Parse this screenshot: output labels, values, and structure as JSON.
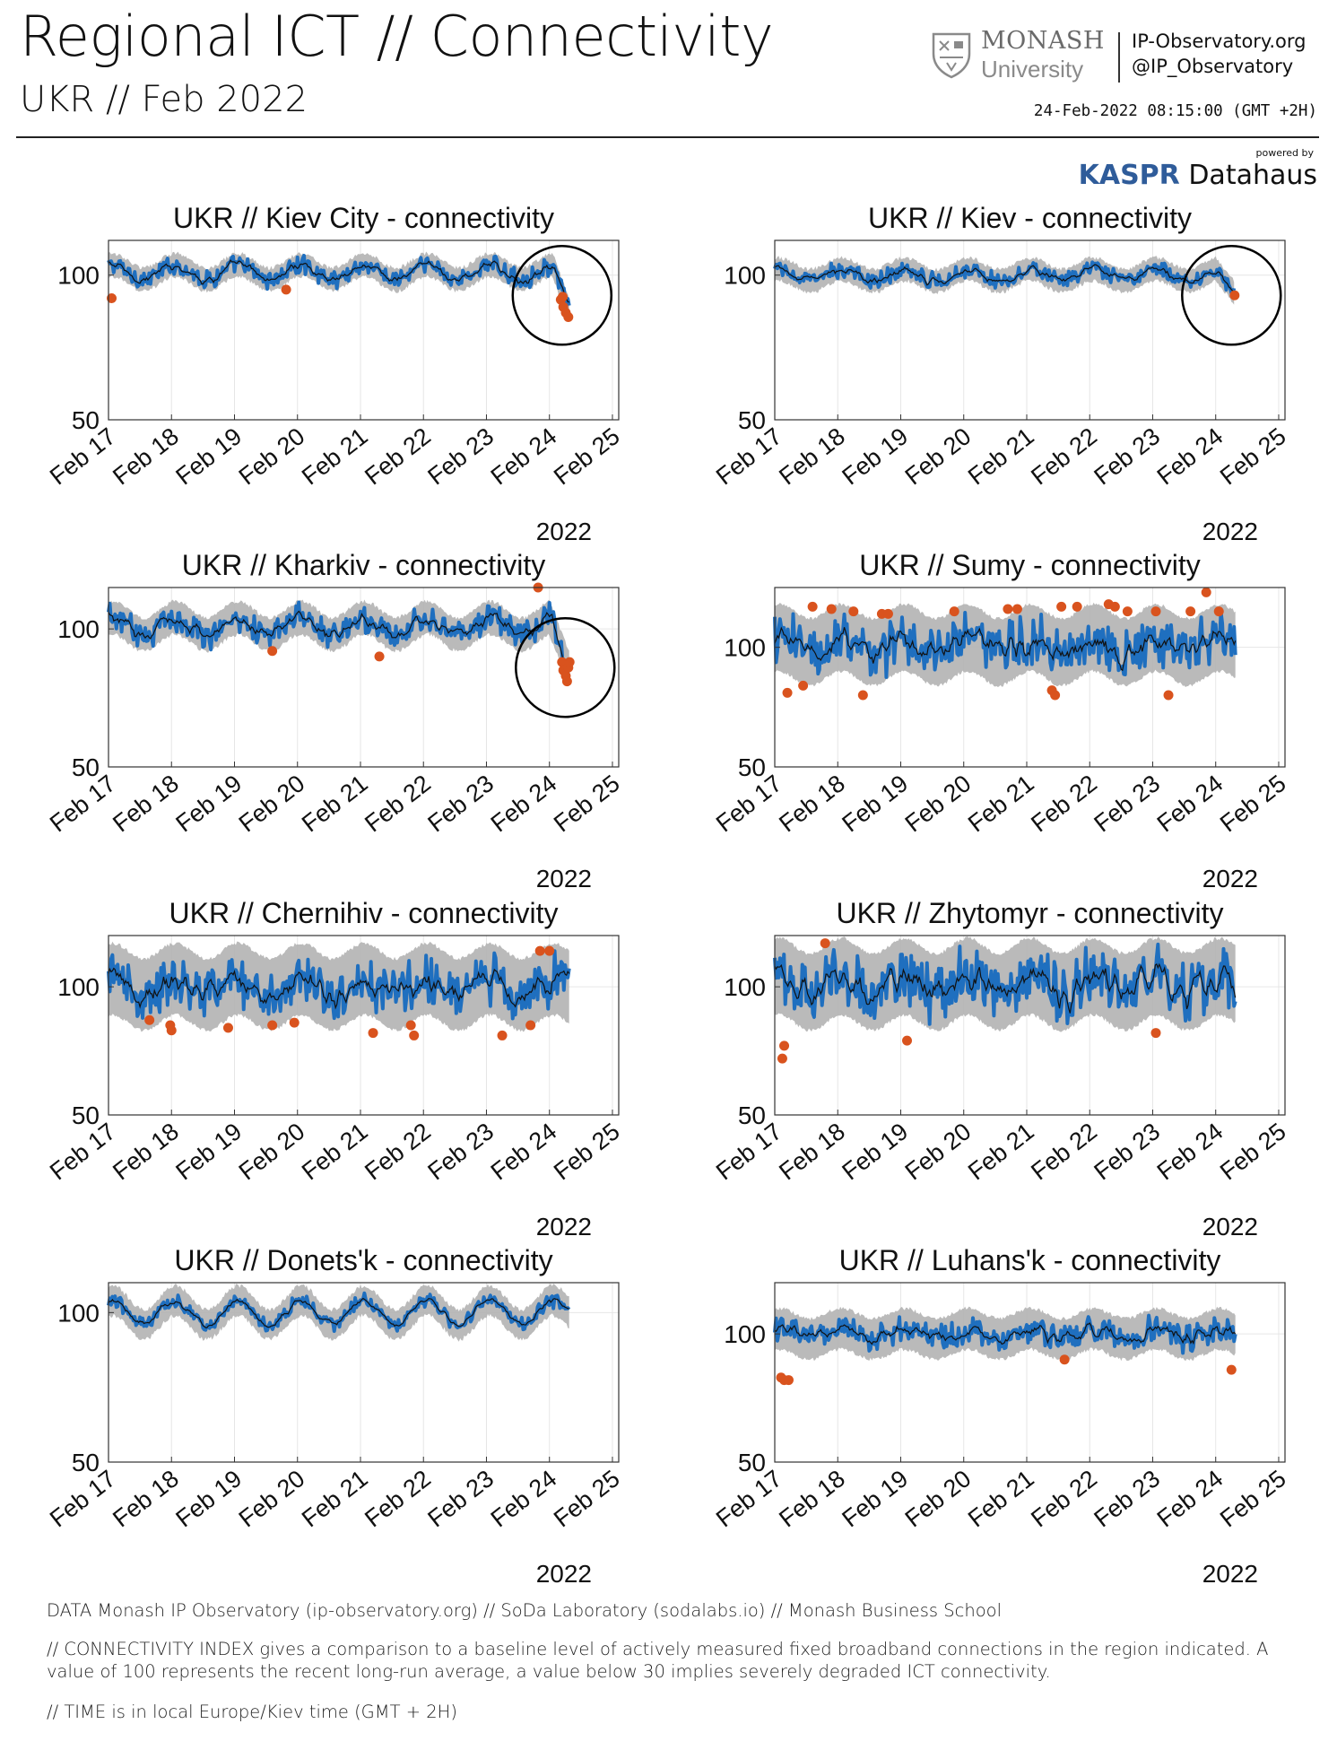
{
  "header": {
    "title": "Regional ICT // Connectivity",
    "subtitle": "UKR // Feb 2022",
    "logo_main": "MONASH",
    "logo_sub": "University",
    "website": "IP-Observatory.org",
    "twitter": "@IP_Observatory",
    "timestamp": "24-Feb-2022 08:15:00 (GMT +2H)",
    "powered_by": "powered by",
    "kaspr": "KASPR",
    "datahaus": "Datahaus"
  },
  "colors": {
    "band": "#b3b3b3",
    "signal": "#1f6fbf",
    "trend": "#111111",
    "outlier": "#d9531e",
    "grid": "#e6e6e6",
    "circle": "#000000"
  },
  "chart_data": [
    {
      "type": "line",
      "title": "UKR // Kiev City - connectivity",
      "ylim": [
        50,
        112
      ],
      "yticks": [
        50,
        100
      ],
      "xticks": [
        "Feb 17",
        "Feb 18",
        "Feb 19",
        "Feb 20",
        "Feb 21",
        "Feb 22",
        "Feb 23",
        "Feb 24",
        "Feb 25"
      ],
      "xlabel": "2022",
      "x_range_days": [
        17,
        25.1
      ],
      "data_end_day": 24.32,
      "band_halfwidth": 4,
      "noise": 2.5,
      "daily_amplitude": 2.5,
      "base": 101,
      "drop": {
        "start_day": 24.05,
        "to": 88
      },
      "outliers": [
        [
          17.05,
          92
        ],
        [
          19.82,
          95
        ],
        [
          24.18,
          91.5
        ],
        [
          24.22,
          89
        ],
        [
          24.26,
          87
        ],
        [
          24.3,
          85.5
        ],
        [
          24.21,
          92.5
        ]
      ],
      "highlight_circle": {
        "day": 24.2,
        "value": 93
      }
    },
    {
      "type": "line",
      "title": "UKR // Kiev - connectivity",
      "ylim": [
        50,
        112
      ],
      "yticks": [
        50,
        100
      ],
      "xticks": [
        "Feb 17",
        "Feb 18",
        "Feb 19",
        "Feb 20",
        "Feb 21",
        "Feb 22",
        "Feb 23",
        "Feb 24",
        "Feb 25"
      ],
      "xlabel": "2022",
      "x_range_days": [
        17,
        25.1
      ],
      "data_end_day": 24.3,
      "band_halfwidth": 4,
      "noise": 2.2,
      "daily_amplitude": 2,
      "base": 100,
      "drop": {
        "start_day": 24.0,
        "to": 94
      },
      "outliers": [
        [
          24.3,
          93
        ]
      ],
      "highlight_circle": {
        "day": 24.25,
        "value": 93
      }
    },
    {
      "type": "line",
      "title": "UKR // Kharkiv - connectivity",
      "ylim": [
        50,
        115
      ],
      "yticks": [
        50,
        100
      ],
      "xticks": [
        "Feb 17",
        "Feb 18",
        "Feb 19",
        "Feb 20",
        "Feb 21",
        "Feb 22",
        "Feb 23",
        "Feb 24",
        "Feb 25"
      ],
      "xlabel": "2022",
      "x_range_days": [
        17,
        25.1
      ],
      "data_end_day": 24.32,
      "band_halfwidth": 6,
      "noise": 4,
      "daily_amplitude": 3,
      "base": 101,
      "drop": {
        "start_day": 24.0,
        "to": 86
      },
      "outliers": [
        [
          19.6,
          92
        ],
        [
          21.3,
          90
        ],
        [
          23.82,
          115
        ],
        [
          24.2,
          88
        ],
        [
          24.22,
          85
        ],
        [
          24.26,
          83
        ],
        [
          24.28,
          81
        ],
        [
          24.3,
          86
        ],
        [
          24.32,
          88
        ]
      ],
      "highlight_circle": {
        "day": 24.25,
        "value": 86
      }
    },
    {
      "type": "line",
      "title": "UKR // Sumy - connectivity",
      "ylim": [
        50,
        125
      ],
      "yticks": [
        50,
        100
      ],
      "xticks": [
        "Feb 17",
        "Feb 18",
        "Feb 19",
        "Feb 20",
        "Feb 21",
        "Feb 22",
        "Feb 23",
        "Feb 24",
        "Feb 25"
      ],
      "xlabel": "2022",
      "x_range_days": [
        17,
        25.1
      ],
      "data_end_day": 24.32,
      "band_halfwidth": 14,
      "noise": 9,
      "daily_amplitude": 3,
      "base": 101,
      "drop": null,
      "outliers": [
        [
          17.2,
          81
        ],
        [
          17.45,
          84
        ],
        [
          17.6,
          117
        ],
        [
          17.9,
          116
        ],
        [
          18.25,
          115
        ],
        [
          18.4,
          80
        ],
        [
          18.7,
          114
        ],
        [
          18.8,
          114
        ],
        [
          19.85,
          115
        ],
        [
          20.7,
          116
        ],
        [
          20.85,
          116
        ],
        [
          21.4,
          82
        ],
        [
          21.45,
          80
        ],
        [
          21.55,
          117
        ],
        [
          21.8,
          117
        ],
        [
          22.3,
          118
        ],
        [
          22.4,
          117
        ],
        [
          22.6,
          115
        ],
        [
          23.05,
          115
        ],
        [
          23.25,
          80
        ],
        [
          23.6,
          115
        ],
        [
          23.85,
          123
        ],
        [
          24.05,
          115
        ]
      ],
      "highlight_circle": null
    },
    {
      "type": "line",
      "title": "UKR // Chernihiv - connectivity",
      "ylim": [
        50,
        120
      ],
      "yticks": [
        50,
        100
      ],
      "xticks": [
        "Feb 17",
        "Feb 18",
        "Feb 19",
        "Feb 20",
        "Feb 21",
        "Feb 22",
        "Feb 23",
        "Feb 24",
        "Feb 25"
      ],
      "xlabel": "2022",
      "x_range_days": [
        17,
        25.1
      ],
      "data_end_day": 24.32,
      "band_halfwidth": 14,
      "noise": 8,
      "daily_amplitude": 3,
      "base": 100,
      "drop": null,
      "outliers": [
        [
          17.65,
          87
        ],
        [
          17.98,
          85
        ],
        [
          18.0,
          83
        ],
        [
          18.9,
          84
        ],
        [
          19.6,
          85
        ],
        [
          19.95,
          86
        ],
        [
          21.2,
          82
        ],
        [
          21.8,
          85
        ],
        [
          21.85,
          81
        ],
        [
          23.25,
          81
        ],
        [
          23.7,
          85
        ],
        [
          23.85,
          114
        ],
        [
          24.0,
          114
        ]
      ],
      "highlight_circle": null
    },
    {
      "type": "line",
      "title": "UKR // Zhytomyr - connectivity",
      "ylim": [
        50,
        120
      ],
      "yticks": [
        50,
        100
      ],
      "xticks": [
        "Feb 17",
        "Feb 18",
        "Feb 19",
        "Feb 20",
        "Feb 21",
        "Feb 22",
        "Feb 23",
        "Feb 24",
        "Feb 25"
      ],
      "xlabel": "2022",
      "x_range_days": [
        17,
        25.1
      ],
      "data_end_day": 24.32,
      "band_halfwidth": 15,
      "noise": 9,
      "daily_amplitude": 3,
      "base": 101,
      "drop": null,
      "outliers": [
        [
          17.12,
          72
        ],
        [
          17.15,
          77
        ],
        [
          17.8,
          117
        ],
        [
          19.1,
          79
        ],
        [
          23.05,
          82
        ]
      ],
      "highlight_circle": null
    },
    {
      "type": "line",
      "title": "UKR // Donets'k - connectivity",
      "ylim": [
        50,
        110
      ],
      "yticks": [
        50,
        100
      ],
      "xticks": [
        "Feb 17",
        "Feb 18",
        "Feb 19",
        "Feb 20",
        "Feb 21",
        "Feb 22",
        "Feb 23",
        "Feb 24",
        "Feb 25"
      ],
      "xlabel": "2022",
      "x_range_days": [
        17,
        25.1
      ],
      "data_end_day": 24.32,
      "band_halfwidth": 5,
      "noise": 1.8,
      "daily_amplitude": 4,
      "base": 100,
      "drop": null,
      "outliers": [],
      "highlight_circle": null
    },
    {
      "type": "line",
      "title": "UKR // Luhans'k - connectivity",
      "ylim": [
        50,
        120
      ],
      "yticks": [
        50,
        100
      ],
      "xticks": [
        "Feb 17",
        "Feb 18",
        "Feb 19",
        "Feb 20",
        "Feb 21",
        "Feb 22",
        "Feb 23",
        "Feb 24",
        "Feb 25"
      ],
      "xlabel": "2022",
      "x_range_days": [
        17,
        25.1
      ],
      "data_end_day": 24.32,
      "band_halfwidth": 8,
      "noise": 4,
      "daily_amplitude": 2,
      "base": 100,
      "drop": null,
      "outliers": [
        [
          17.1,
          83
        ],
        [
          17.15,
          82
        ],
        [
          17.22,
          82
        ],
        [
          21.6,
          90
        ],
        [
          24.25,
          86
        ]
      ],
      "highlight_circle": null
    }
  ],
  "footer": {
    "line1": "DATA Monash IP Observatory (ip-observatory.org) // SoDa Laboratory (sodalabs.io) // Monash Business School",
    "line2": "// CONNECTIVITY INDEX gives a comparison to a baseline level of actively measured fixed broadband connections in the region indicated. A value of 100 represents the recent long-run average, a value below 30 implies severely degraded ICT connectivity.",
    "line3": "// TIME is in local Europe/Kiev time (GMT + 2H)"
  }
}
